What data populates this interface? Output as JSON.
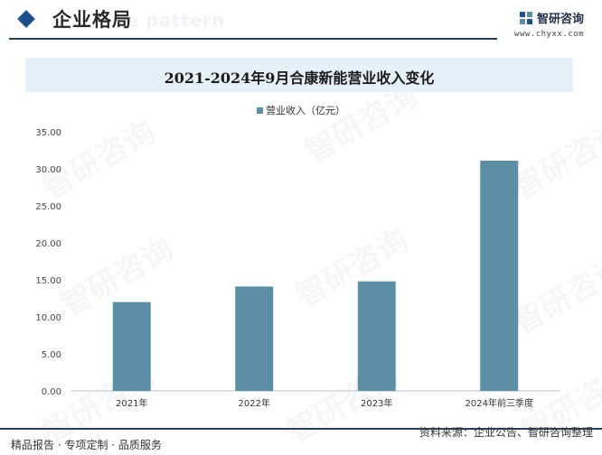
{
  "header": {
    "title": "企业格局",
    "ghost_text": "e pattern"
  },
  "brand": {
    "name": "智研咨询",
    "url": "www.chyxx.com",
    "logo_icon": "chyxx-logo-icon"
  },
  "watermark": "智研咨询",
  "colors": {
    "bar": "#5b8fa5",
    "accent": "#1f4e8c",
    "title_bg": "#e7f0f8"
  },
  "chart_data": {
    "type": "bar",
    "title": "2021-2024年9月合康新能营业收入变化",
    "categories": [
      "2021年",
      "2022年",
      "2023年",
      "2024年前三季度"
    ],
    "series": [
      {
        "name": "营业收入（亿元）",
        "values": [
          12.0,
          14.1,
          14.8,
          31.1
        ]
      }
    ],
    "ylim": [
      0,
      35
    ],
    "yticks": [
      "0.00",
      "5.00",
      "10.00",
      "15.00",
      "20.00",
      "25.00",
      "30.00",
      "35.00"
    ],
    "grid": false,
    "legend": "top-center"
  },
  "footer": {
    "left": "精品报告 · 专项定制 · 品质服务",
    "right": "资料来源：企业公告、智研咨询整理"
  }
}
